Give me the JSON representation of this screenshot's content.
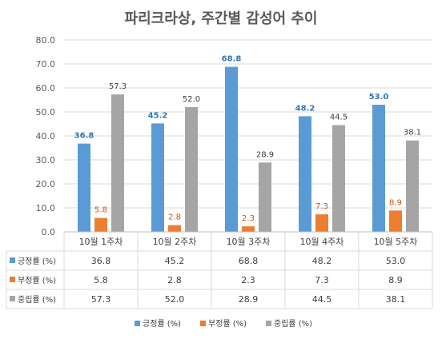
{
  "chart_data": {
    "type": "bar",
    "title": "파리크라상, 주간별 감성어 추이",
    "categories": [
      "10월 1주차",
      "10월 2주차",
      "10월 3주차",
      "10월 4주차",
      "10월 5주차"
    ],
    "series": [
      {
        "name": "긍정률 (%)",
        "values": [
          36.8,
          45.2,
          68.8,
          48.2,
          53.0
        ],
        "color": "#5b9bd5",
        "label_color": "#2e75b6",
        "label_bold": true
      },
      {
        "name": "부정률 (%)",
        "values": [
          5.8,
          2.8,
          2.3,
          7.3,
          8.9
        ],
        "color": "#ed7d31",
        "label_color": "#c55a11",
        "label_bold": false
      },
      {
        "name": "중립률 (%)",
        "values": [
          57.3,
          52.0,
          28.9,
          44.5,
          38.1
        ],
        "color": "#a5a5a5",
        "label_color": "#404040",
        "label_bold": false
      }
    ],
    "y_ticks": [
      "0.0",
      "10.0",
      "20.0",
      "30.0",
      "40.0",
      "50.0",
      "60.0",
      "70.0",
      "80.0"
    ],
    "ylim": [
      0,
      80
    ],
    "grid": true,
    "legend_position": "bottom",
    "data_table": true
  }
}
